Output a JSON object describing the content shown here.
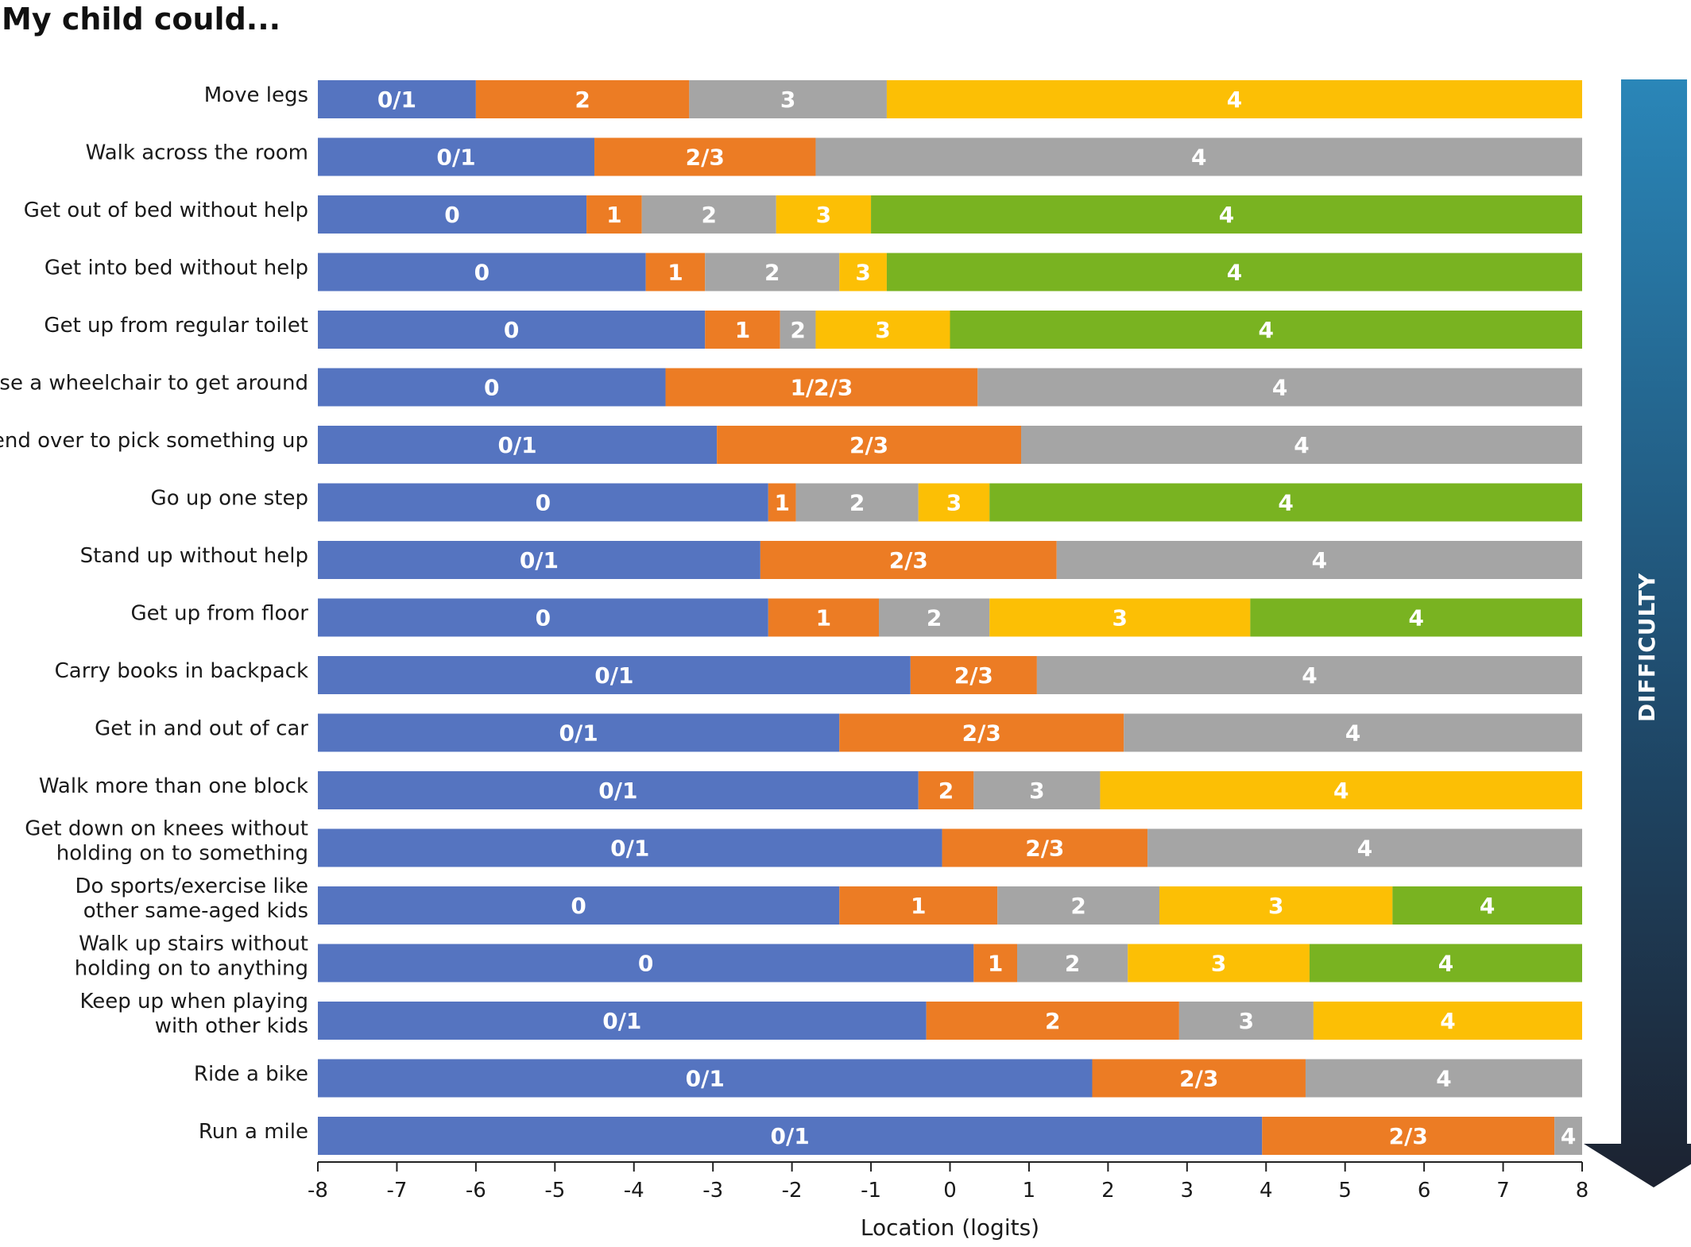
{
  "chart_data": {
    "type": "bar",
    "orientation": "horizontal-stacked",
    "title": "My child could...",
    "xlabel": "Location (logits)",
    "xlim": [
      -8,
      8
    ],
    "xticks": [
      "-8",
      "-7",
      "-6",
      "-5",
      "-4",
      "-3",
      "-2",
      "-1",
      "0",
      "1",
      "2",
      "3",
      "4",
      "5",
      "6",
      "7",
      "8"
    ],
    "side_arrow_label": "DIFFICULTY",
    "colors": {
      "blue": "#5574C0",
      "orange": "#EC7C24",
      "gray": "#A5A5A5",
      "yellow": "#FCBF05",
      "green": "#79B321"
    },
    "items": [
      {
        "label": [
          "Move legs"
        ],
        "segments": [
          {
            "label": "0/1",
            "start": -8,
            "end": -6.0,
            "color": "blue"
          },
          {
            "label": "2",
            "start": -6.0,
            "end": -3.3,
            "color": "orange"
          },
          {
            "label": "3",
            "start": -3.3,
            "end": -0.8,
            "color": "gray"
          },
          {
            "label": "4",
            "start": -0.8,
            "end": 8,
            "color": "yellow"
          }
        ]
      },
      {
        "label": [
          "Walk across the room"
        ],
        "segments": [
          {
            "label": "0/1",
            "start": -8,
            "end": -4.5,
            "color": "blue"
          },
          {
            "label": "2/3",
            "start": -4.5,
            "end": -1.7,
            "color": "orange"
          },
          {
            "label": "4",
            "start": -1.7,
            "end": 8,
            "color": "gray"
          }
        ]
      },
      {
        "label": [
          "Get out of bed without help"
        ],
        "segments": [
          {
            "label": "0",
            "start": -8,
            "end": -4.6,
            "color": "blue"
          },
          {
            "label": "1",
            "start": -4.6,
            "end": -3.9,
            "color": "orange"
          },
          {
            "label": "2",
            "start": -3.9,
            "end": -2.2,
            "color": "gray"
          },
          {
            "label": "3",
            "start": -2.2,
            "end": -1.0,
            "color": "yellow"
          },
          {
            "label": "4",
            "start": -1.0,
            "end": 8,
            "color": "green"
          }
        ]
      },
      {
        "label": [
          "Get into bed without help"
        ],
        "segments": [
          {
            "label": "0",
            "start": -8,
            "end": -3.85,
            "color": "blue"
          },
          {
            "label": "1",
            "start": -3.85,
            "end": -3.1,
            "color": "orange"
          },
          {
            "label": "2",
            "start": -3.1,
            "end": -1.4,
            "color": "gray"
          },
          {
            "label": "3",
            "start": -1.4,
            "end": -0.8,
            "color": "yellow"
          },
          {
            "label": "4",
            "start": -0.8,
            "end": 8,
            "color": "green"
          }
        ]
      },
      {
        "label": [
          "Get up from regular toilet"
        ],
        "segments": [
          {
            "label": "0",
            "start": -8,
            "end": -3.1,
            "color": "blue"
          },
          {
            "label": "1",
            "start": -3.1,
            "end": -2.15,
            "color": "orange"
          },
          {
            "label": "2",
            "start": -2.15,
            "end": -1.7,
            "color": "gray"
          },
          {
            "label": "3",
            "start": -1.7,
            "end": 0.0,
            "color": "yellow"
          },
          {
            "label": "4",
            "start": 0.0,
            "end": 8,
            "color": "green"
          }
        ]
      },
      {
        "label": [
          "Use a wheelchair to get around"
        ],
        "segments": [
          {
            "label": "0",
            "start": -8,
            "end": -3.6,
            "color": "blue"
          },
          {
            "label": "1/2/3",
            "start": -3.6,
            "end": 0.35,
            "color": "orange"
          },
          {
            "label": "4",
            "start": 0.35,
            "end": 8,
            "color": "gray"
          }
        ]
      },
      {
        "label": [
          "Bend over to pick something up"
        ],
        "segments": [
          {
            "label": "0/1",
            "start": -8,
            "end": -2.95,
            "color": "blue"
          },
          {
            "label": "2/3",
            "start": -2.95,
            "end": 0.9,
            "color": "orange"
          },
          {
            "label": "4",
            "start": 0.9,
            "end": 8,
            "color": "gray"
          }
        ]
      },
      {
        "label": [
          "Go up one step"
        ],
        "segments": [
          {
            "label": "0",
            "start": -8,
            "end": -2.3,
            "color": "blue"
          },
          {
            "label": "1",
            "start": -2.3,
            "end": -1.95,
            "color": "orange"
          },
          {
            "label": "2",
            "start": -1.95,
            "end": -0.4,
            "color": "gray"
          },
          {
            "label": "3",
            "start": -0.4,
            "end": 0.5,
            "color": "yellow"
          },
          {
            "label": "4",
            "start": 0.5,
            "end": 8,
            "color": "green"
          }
        ]
      },
      {
        "label": [
          "Stand up without help"
        ],
        "segments": [
          {
            "label": "0/1",
            "start": -8,
            "end": -2.4,
            "color": "blue"
          },
          {
            "label": "2/3",
            "start": -2.4,
            "end": 1.35,
            "color": "orange"
          },
          {
            "label": "4",
            "start": 1.35,
            "end": 8,
            "color": "gray"
          }
        ]
      },
      {
        "label": [
          "Get up from floor"
        ],
        "segments": [
          {
            "label": "0",
            "start": -8,
            "end": -2.3,
            "color": "blue"
          },
          {
            "label": "1",
            "start": -2.3,
            "end": -0.9,
            "color": "orange"
          },
          {
            "label": "2",
            "start": -0.9,
            "end": 0.5,
            "color": "gray"
          },
          {
            "label": "3",
            "start": 0.5,
            "end": 3.8,
            "color": "yellow"
          },
          {
            "label": "4",
            "start": 3.8,
            "end": 8,
            "color": "green"
          }
        ]
      },
      {
        "label": [
          "Carry books in backpack"
        ],
        "segments": [
          {
            "label": "0/1",
            "start": -8,
            "end": -0.5,
            "color": "blue"
          },
          {
            "label": "2/3",
            "start": -0.5,
            "end": 1.1,
            "color": "orange"
          },
          {
            "label": "4",
            "start": 1.1,
            "end": 8,
            "color": "gray"
          }
        ]
      },
      {
        "label": [
          "Get in and out of car"
        ],
        "segments": [
          {
            "label": "0/1",
            "start": -8,
            "end": -1.4,
            "color": "blue"
          },
          {
            "label": "2/3",
            "start": -1.4,
            "end": 2.2,
            "color": "orange"
          },
          {
            "label": "4",
            "start": 2.2,
            "end": 8,
            "color": "gray"
          }
        ]
      },
      {
        "label": [
          "Walk more than one block"
        ],
        "segments": [
          {
            "label": "0/1",
            "start": -8,
            "end": -0.4,
            "color": "blue"
          },
          {
            "label": "2",
            "start": -0.4,
            "end": 0.3,
            "color": "orange"
          },
          {
            "label": "3",
            "start": 0.3,
            "end": 1.9,
            "color": "gray"
          },
          {
            "label": "4",
            "start": 1.9,
            "end": 8,
            "color": "yellow"
          }
        ]
      },
      {
        "label": [
          "Get down on knees without",
          "holding on to something"
        ],
        "segments": [
          {
            "label": "0/1",
            "start": -8,
            "end": -0.1,
            "color": "blue"
          },
          {
            "label": "2/3",
            "start": -0.1,
            "end": 2.5,
            "color": "orange"
          },
          {
            "label": "4",
            "start": 2.5,
            "end": 8,
            "color": "gray"
          }
        ]
      },
      {
        "label": [
          "Do sports/exercise like",
          "other same-aged kids"
        ],
        "segments": [
          {
            "label": "0",
            "start": -8,
            "end": -1.4,
            "color": "blue"
          },
          {
            "label": "1",
            "start": -1.4,
            "end": 0.6,
            "color": "orange"
          },
          {
            "label": "2",
            "start": 0.6,
            "end": 2.65,
            "color": "gray"
          },
          {
            "label": "3",
            "start": 2.65,
            "end": 5.6,
            "color": "yellow"
          },
          {
            "label": "4",
            "start": 5.6,
            "end": 8,
            "color": "green"
          }
        ]
      },
      {
        "label": [
          "Walk up stairs without",
          "holding on to anything"
        ],
        "segments": [
          {
            "label": "0",
            "start": -8,
            "end": 0.3,
            "color": "blue"
          },
          {
            "label": "1",
            "start": 0.3,
            "end": 0.85,
            "color": "orange"
          },
          {
            "label": "2",
            "start": 0.85,
            "end": 2.25,
            "color": "gray"
          },
          {
            "label": "3",
            "start": 2.25,
            "end": 4.55,
            "color": "yellow"
          },
          {
            "label": "4",
            "start": 4.55,
            "end": 8,
            "color": "green"
          }
        ]
      },
      {
        "label": [
          "Keep up when playing",
          "with other kids"
        ],
        "segments": [
          {
            "label": "0/1",
            "start": -8,
            "end": -0.3,
            "color": "blue"
          },
          {
            "label": "2",
            "start": -0.3,
            "end": 2.9,
            "color": "orange"
          },
          {
            "label": "3",
            "start": 2.9,
            "end": 4.6,
            "color": "gray"
          },
          {
            "label": "4",
            "start": 4.6,
            "end": 8,
            "color": "yellow"
          }
        ]
      },
      {
        "label": [
          "Ride a bike"
        ],
        "segments": [
          {
            "label": "0/1",
            "start": -8,
            "end": 1.8,
            "color": "blue"
          },
          {
            "label": "2/3",
            "start": 1.8,
            "end": 4.5,
            "color": "orange"
          },
          {
            "label": "4",
            "start": 4.5,
            "end": 8,
            "color": "gray"
          }
        ]
      },
      {
        "label": [
          "Run a mile"
        ],
        "segments": [
          {
            "label": "0/1",
            "start": -8,
            "end": 3.95,
            "color": "blue"
          },
          {
            "label": "2/3",
            "start": 3.95,
            "end": 7.65,
            "color": "orange"
          },
          {
            "label": "4",
            "start": 7.65,
            "end": 8,
            "color": "gray"
          }
        ]
      }
    ]
  }
}
